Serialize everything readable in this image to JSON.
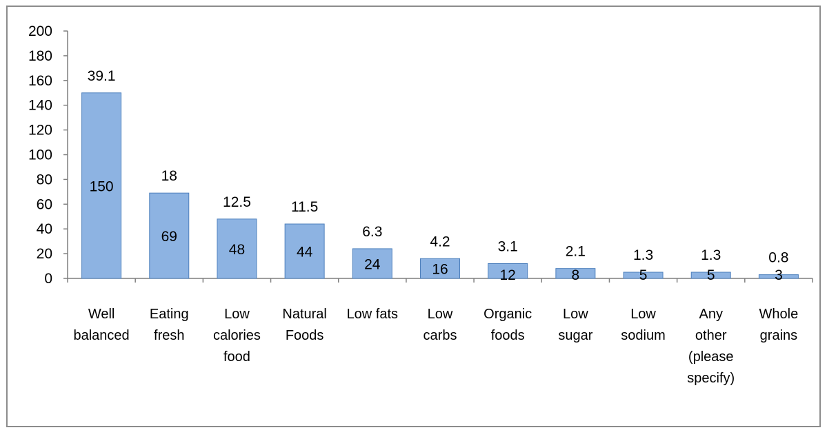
{
  "chart_data": {
    "type": "bar",
    "categories": [
      [
        "Well",
        "balanced"
      ],
      [
        "Eating",
        "fresh"
      ],
      [
        "Low",
        "calories",
        "food"
      ],
      [
        "Natural",
        "Foods"
      ],
      [
        "Low fats"
      ],
      [
        "Low",
        "carbs"
      ],
      [
        "Organic",
        "foods"
      ],
      [
        "Low",
        "sugar"
      ],
      [
        "Low",
        "sodium"
      ],
      [
        "Any",
        "other",
        "(please",
        "specify)"
      ],
      [
        "Whole",
        "grains"
      ]
    ],
    "values": [
      150,
      69,
      48,
      44,
      24,
      16,
      12,
      8,
      5,
      5,
      3
    ],
    "value_labels": [
      "150",
      "69",
      "48",
      "44",
      "24",
      "16",
      "12",
      "8",
      "5",
      "5",
      "3"
    ],
    "percent_labels": [
      "39.1",
      "18",
      "12.5",
      "11.5",
      "6.3",
      "4.2",
      "3.1",
      "2.1",
      "1.3",
      "1.3",
      "0.8"
    ],
    "title": "",
    "xlabel": "",
    "ylabel": "",
    "ylim": [
      0,
      200
    ],
    "yticks": [
      "0",
      "20",
      "40",
      "60",
      "80",
      "100",
      "120",
      "140",
      "160",
      "180",
      "200"
    ],
    "grid": false,
    "legend": "none",
    "colors": {
      "bar_fill": "#8db3e2",
      "bar_stroke": "#4f81bd",
      "axis": "#7f7f7f",
      "frame": "#8c8c8c"
    }
  }
}
